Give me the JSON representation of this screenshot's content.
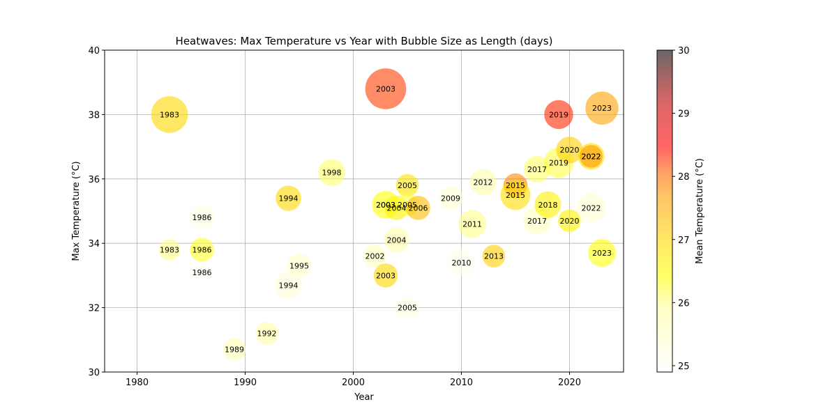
{
  "chart_data": {
    "type": "scatter",
    "title": "Heatwaves: Max Temperature vs Year with Bubble Size as Length (days)",
    "xlabel": "Year",
    "ylabel": "Max Temperature (°C)",
    "xlim": [
      1977,
      2025
    ],
    "ylim": [
      30,
      40
    ],
    "xticks": [
      1980,
      1990,
      2000,
      2010,
      2020
    ],
    "yticks": [
      30,
      32,
      34,
      36,
      38,
      40
    ],
    "grid": true,
    "colorbar": {
      "label": "Mean Temperature (°C)",
      "min": 24.9,
      "max": 30,
      "ticks": [
        25,
        26,
        27,
        28,
        29,
        30
      ],
      "colormap": "hot_r",
      "alpha": 0.6
    },
    "points": [
      {
        "year": 1983,
        "max_temp": 38.0,
        "mean_temp": 27.0,
        "length": 21,
        "label": "1983"
      },
      {
        "year": 1983,
        "max_temp": 33.8,
        "mean_temp": 26.0,
        "length": 7,
        "label": "1983"
      },
      {
        "year": 1986,
        "max_temp": 34.8,
        "mean_temp": 25.2,
        "length": 9,
        "label": "1986"
      },
      {
        "year": 1986,
        "max_temp": 33.8,
        "mean_temp": 26.3,
        "length": 9,
        "label": "1986"
      },
      {
        "year": 1986,
        "max_temp": 33.1,
        "mean_temp": 25.0,
        "length": 5,
        "label": "1986"
      },
      {
        "year": 1989,
        "max_temp": 30.7,
        "mean_temp": 25.7,
        "length": 8,
        "label": "1989"
      },
      {
        "year": 1992,
        "max_temp": 31.2,
        "mean_temp": 25.9,
        "length": 8,
        "label": "1992"
      },
      {
        "year": 1994,
        "max_temp": 35.4,
        "mean_temp": 27.0,
        "length": 10,
        "label": "1994"
      },
      {
        "year": 1994,
        "max_temp": 32.7,
        "mean_temp": 25.3,
        "length": 12,
        "label": "1994"
      },
      {
        "year": 1995,
        "max_temp": 33.3,
        "mean_temp": 25.5,
        "length": 9,
        "label": "1995"
      },
      {
        "year": 1998,
        "max_temp": 36.2,
        "mean_temp": 26.1,
        "length": 11,
        "label": "1998"
      },
      {
        "year": 2002,
        "max_temp": 33.6,
        "mean_temp": 25.6,
        "length": 8,
        "label": "2002"
      },
      {
        "year": 2003,
        "max_temp": 38.8,
        "mean_temp": 28.2,
        "length": 26,
        "label": "2003"
      },
      {
        "year": 2003,
        "max_temp": 35.2,
        "mean_temp": 25.9,
        "length": 11,
        "label": "2003"
      },
      {
        "year": 2003,
        "max_temp": 35.2,
        "mean_temp": 26.3,
        "length": 12,
        "label": "2003"
      },
      {
        "year": 2003,
        "max_temp": 33.0,
        "mean_temp": 27.0,
        "length": 9,
        "label": "2003"
      },
      {
        "year": 2004,
        "max_temp": 35.1,
        "mean_temp": 26.6,
        "length": 9,
        "label": "2004"
      },
      {
        "year": 2004,
        "max_temp": 34.1,
        "mean_temp": 25.8,
        "length": 10,
        "label": "2004"
      },
      {
        "year": 2005,
        "max_temp": 35.8,
        "mean_temp": 26.8,
        "length": 8,
        "label": "2005"
      },
      {
        "year": 2005,
        "max_temp": 35.2,
        "mean_temp": 26.2,
        "length": 8,
        "label": "2005"
      },
      {
        "year": 2005,
        "max_temp": 32.0,
        "mean_temp": 25.2,
        "length": 8,
        "label": "2005"
      },
      {
        "year": 2006,
        "max_temp": 35.1,
        "mean_temp": 27.3,
        "length": 9,
        "label": "2006"
      },
      {
        "year": 2009,
        "max_temp": 35.4,
        "mean_temp": 25.4,
        "length": 9,
        "label": "2009"
      },
      {
        "year": 2010,
        "max_temp": 33.4,
        "mean_temp": 25.1,
        "length": 11,
        "label": "2010"
      },
      {
        "year": 2011,
        "max_temp": 34.6,
        "mean_temp": 26.0,
        "length": 12,
        "label": "2011"
      },
      {
        "year": 2012,
        "max_temp": 35.9,
        "mean_temp": 25.8,
        "length": 11,
        "label": "2012"
      },
      {
        "year": 2013,
        "max_temp": 33.6,
        "mean_temp": 27.1,
        "length": 8,
        "label": "2013"
      },
      {
        "year": 2015,
        "max_temp": 35.8,
        "mean_temp": 27.8,
        "length": 9,
        "label": "2015"
      },
      {
        "year": 2015,
        "max_temp": 35.5,
        "mean_temp": 26.9,
        "length": 14,
        "label": "2015"
      },
      {
        "year": 2017,
        "max_temp": 36.3,
        "mean_temp": 26.1,
        "length": 11,
        "label": "2017"
      },
      {
        "year": 2017,
        "max_temp": 34.7,
        "mean_temp": 25.6,
        "length": 12,
        "label": "2017"
      },
      {
        "year": 2018,
        "max_temp": 35.2,
        "mean_temp": 26.6,
        "length": 11,
        "label": "2018"
      },
      {
        "year": 2019,
        "max_temp": 38.0,
        "mean_temp": 28.3,
        "length": 13,
        "label": "2019"
      },
      {
        "year": 2019,
        "max_temp": 36.5,
        "mean_temp": 26.2,
        "length": 14,
        "label": "2019"
      },
      {
        "year": 2020,
        "max_temp": 36.9,
        "mean_temp": 27.1,
        "length": 11,
        "label": "2020"
      },
      {
        "year": 2020,
        "max_temp": 34.7,
        "mean_temp": 26.6,
        "length": 8,
        "label": "2020"
      },
      {
        "year": 2022,
        "max_temp": 36.7,
        "mean_temp": 26.9,
        "length": 11,
        "label": "2022"
      },
      {
        "year": 2022,
        "max_temp": 36.7,
        "mean_temp": 27.7,
        "length": 8,
        "label": "2022"
      },
      {
        "year": 2022,
        "max_temp": 35.1,
        "mean_temp": 25.4,
        "length": 13,
        "label": "2022"
      },
      {
        "year": 2023,
        "max_temp": 38.2,
        "mean_temp": 27.6,
        "length": 17,
        "label": "2023"
      },
      {
        "year": 2023,
        "max_temp": 33.7,
        "mean_temp": 26.4,
        "length": 12,
        "label": "2023"
      }
    ]
  }
}
